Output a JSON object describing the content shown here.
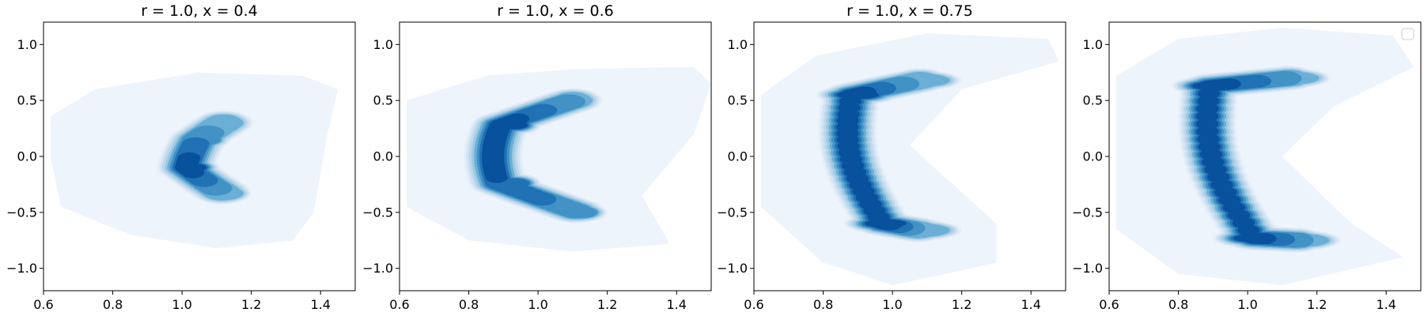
{
  "chart_data": [
    {
      "type": "contour",
      "title": "r = 1.0, x = 0.4",
      "xlabel": "",
      "ylabel": "",
      "xlim": [
        0.6,
        1.5
      ],
      "ylim": [
        -1.2,
        1.2
      ],
      "xticks": [
        "0.6",
        "0.8",
        "1.0",
        "1.2",
        "1.4"
      ],
      "yticks": [
        "−1.0",
        "−0.5",
        "0.0",
        "0.5",
        "1.0"
      ],
      "legend": false,
      "density_peaks": [
        {
          "x": 1.03,
          "y": -0.1,
          "level": 0.95
        },
        {
          "x": 1.06,
          "y": 0.15,
          "level": 0.7
        },
        {
          "x": 1.12,
          "y": -0.33,
          "level": 0.55
        },
        {
          "x": 1.12,
          "y": 0.3,
          "level": 0.5
        }
      ]
    },
    {
      "type": "contour",
      "title": "r = 1.0, x = 0.6",
      "xlabel": "",
      "ylabel": "",
      "xlim": [
        0.6,
        1.5
      ],
      "ylim": [
        -1.2,
        1.2
      ],
      "xticks": [
        "0.6",
        "0.8",
        "1.0",
        "1.2",
        "1.4"
      ],
      "yticks": [
        "−1.0",
        "−0.5",
        "0.0",
        "0.5",
        "1.0"
      ],
      "legend": false,
      "density_peaks": [
        {
          "x": 0.93,
          "y": 0.28,
          "level": 0.95
        },
        {
          "x": 0.93,
          "y": -0.24,
          "level": 0.85
        },
        {
          "x": 1.1,
          "y": 0.5,
          "level": 0.6
        },
        {
          "x": 1.12,
          "y": -0.5,
          "level": 0.65
        }
      ]
    },
    {
      "type": "contour",
      "title": "r = 1.0, x = 0.75",
      "xlabel": "",
      "ylabel": "",
      "xlim": [
        0.6,
        1.5
      ],
      "ylim": [
        -1.2,
        1.2
      ],
      "xticks": [
        "0.6",
        "0.8",
        "1.0",
        "1.2",
        "1.4"
      ],
      "yticks": [
        "−1.0",
        "−0.5",
        "0.0",
        "0.5",
        "1.0"
      ],
      "legend": false,
      "density_peaks": [
        {
          "x": 0.9,
          "y": 0.55,
          "level": 0.95
        },
        {
          "x": 0.98,
          "y": -0.6,
          "level": 0.95
        },
        {
          "x": 1.08,
          "y": 0.68,
          "level": 0.5
        },
        {
          "x": 1.08,
          "y": -0.66,
          "level": 0.5
        }
      ]
    },
    {
      "type": "contour",
      "title": "",
      "xlabel": "",
      "ylabel": "",
      "xlim": [
        0.6,
        1.5
      ],
      "ylim": [
        -1.2,
        1.2
      ],
      "xticks": [
        "0.6",
        "0.8",
        "1.0",
        "1.2",
        "1.4"
      ],
      "yticks": [
        "−1.0",
        "−0.5",
        "0.0",
        "0.5",
        "1.0"
      ],
      "legend": true,
      "legend_position": "upper-right",
      "legend_entries": [],
      "density_peaks": [
        {
          "x": 0.9,
          "y": 0.63,
          "level": 0.95
        },
        {
          "x": 1.02,
          "y": -0.73,
          "level": 0.95
        },
        {
          "x": 1.12,
          "y": 0.7,
          "level": 0.6
        },
        {
          "x": 1.15,
          "y": -0.75,
          "level": 0.6
        }
      ]
    }
  ],
  "colors": {
    "background_fill": "#eef4fc",
    "levels": [
      "#e4eef8",
      "#d2e3f3",
      "#bcd7ec",
      "#9ecae1",
      "#6baed6",
      "#4292c6",
      "#2171b5",
      "#08519c",
      "#08306b"
    ]
  }
}
